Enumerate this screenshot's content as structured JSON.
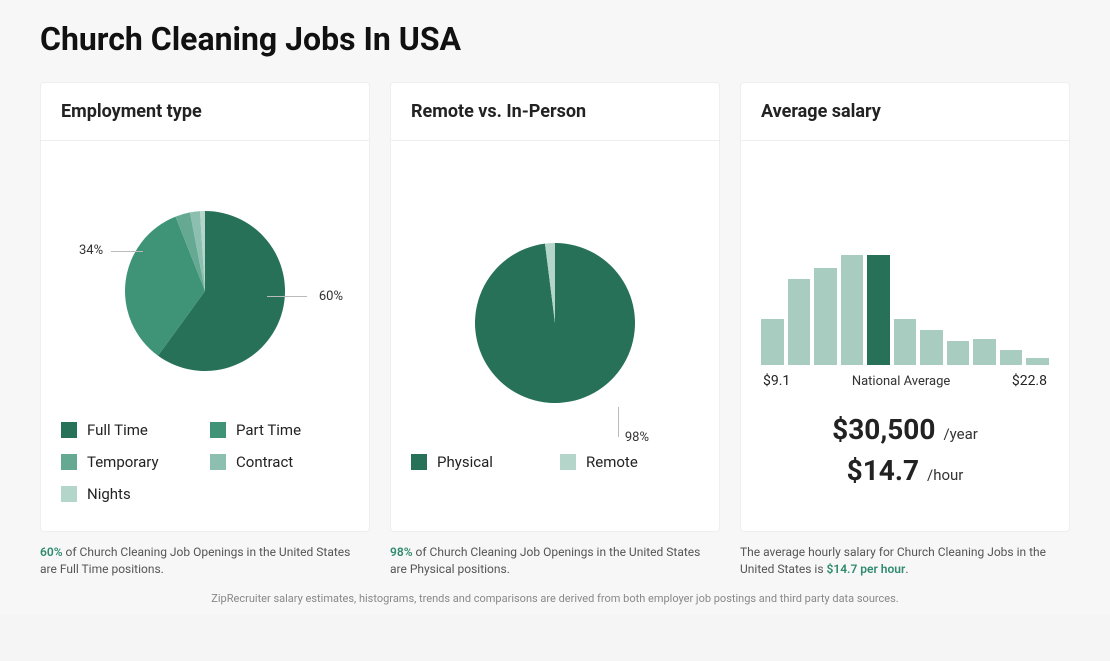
{
  "page": {
    "title": "Church Cleaning Jobs In USA",
    "background_color": "#f7f7f7",
    "card_background": "#ffffff",
    "card_border": "#eeeeee",
    "source_note": "ZipRecruiter salary estimates, histograms, trends and comparisons are derived from both employer job postings and third party data sources."
  },
  "employment_type": {
    "title": "Employment type",
    "type": "pie",
    "slices": [
      {
        "label": "Full Time",
        "value": 60,
        "color": "#277158"
      },
      {
        "label": "Part Time",
        "value": 34,
        "color": "#3f9478"
      },
      {
        "label": "Temporary",
        "value": 3,
        "color": "#66a993"
      },
      {
        "label": "Contract",
        "value": 2,
        "color": "#8cbfaf"
      },
      {
        "label": "Nights",
        "value": 1,
        "color": "#b3d5ca"
      }
    ],
    "callouts": [
      {
        "text": "60%",
        "side": "right"
      },
      {
        "text": "34%",
        "side": "left"
      }
    ],
    "radius": 80,
    "start_angle_deg": -90,
    "footnote_hl": "60%",
    "footnote_rest": " of Church Cleaning Job Openings in the United States are Full Time positions."
  },
  "remote_vs_inperson": {
    "title": "Remote vs. In-Person",
    "type": "pie",
    "slices": [
      {
        "label": "Physical",
        "value": 98,
        "color": "#277158"
      },
      {
        "label": "Remote",
        "value": 2,
        "color": "#b3d5ca"
      }
    ],
    "callouts": [
      {
        "text": "98%",
        "side": "bottom-right"
      }
    ],
    "radius": 80,
    "start_angle_deg": -90,
    "footnote_hl": "98%",
    "footnote_rest": " of Church Cleaning Job Openings in the United States are Physical positions."
  },
  "avg_salary": {
    "title": "Average salary",
    "type": "histogram",
    "bars": [
      {
        "height_pct": 42,
        "color": "#a8cdc0"
      },
      {
        "height_pct": 78,
        "color": "#a8cdc0"
      },
      {
        "height_pct": 88,
        "color": "#a8cdc0"
      },
      {
        "height_pct": 100,
        "color": "#a8cdc0"
      },
      {
        "height_pct": 100,
        "color": "#277158"
      },
      {
        "height_pct": 42,
        "color": "#a8cdc0"
      },
      {
        "height_pct": 32,
        "color": "#a8cdc0"
      },
      {
        "height_pct": 22,
        "color": "#a8cdc0"
      },
      {
        "height_pct": 24,
        "color": "#a8cdc0"
      },
      {
        "height_pct": 14,
        "color": "#a8cdc0"
      },
      {
        "height_pct": 6,
        "color": "#a8cdc0"
      }
    ],
    "xmin_label": "$9.1",
    "xmax_label": "$22.8",
    "national_avg_label": "National Average",
    "yearly_value": "$30,500",
    "yearly_unit": "/year",
    "hourly_value": "$14.7",
    "hourly_unit": "/hour",
    "footnote_pre": "The average hourly salary for Church Cleaning Jobs in the United States is ",
    "footnote_hl": "$14.7 per hour",
    "footnote_post": "."
  }
}
